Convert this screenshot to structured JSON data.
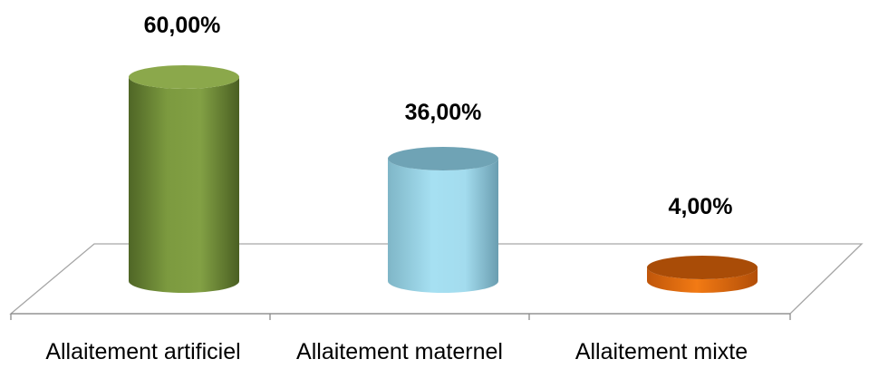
{
  "chart_data": {
    "type": "bar",
    "style": "3d-cylinder",
    "categories": [
      "Allaitement artificiel",
      "Allaitement maternel",
      "Allaitement mixte"
    ],
    "values": [
      60,
      36,
      4
    ],
    "value_labels": [
      "60,00%",
      "36,00%",
      "4,00%"
    ],
    "unit": "%",
    "ylim": [
      0,
      60
    ],
    "grid": false,
    "legend": "none",
    "colors": [
      "#77933c",
      "#93cddd",
      "#e46c0a"
    ],
    "title": "",
    "xlabel": "",
    "ylabel": ""
  }
}
